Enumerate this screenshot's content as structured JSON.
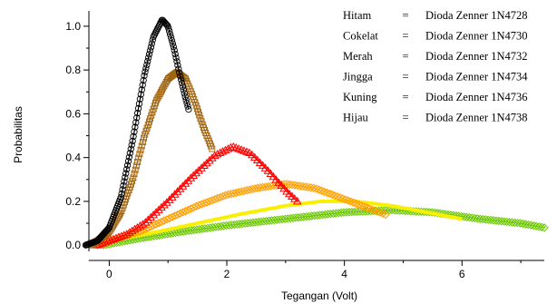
{
  "chart_data": {
    "type": "scatter",
    "title": "",
    "xlabel": "Tegangan (Volt)",
    "ylabel": "Probabilitas",
    "xlim": [
      -0.5,
      7.4
    ],
    "ylim": [
      -0.02,
      1.07
    ],
    "x_ticks": [
      0,
      2,
      4,
      6
    ],
    "x_tick_labels": [
      "0",
      "2",
      "4",
      "6"
    ],
    "y_ticks": [
      0.0,
      0.2,
      0.4,
      0.6,
      0.8,
      1.0
    ],
    "y_tick_labels": [
      "0.0",
      "0.2",
      "0.4",
      "0.6",
      "0.8",
      "1.0"
    ],
    "grid": false,
    "legend_position": "top-right",
    "legend": [
      {
        "color_name": "Hitam",
        "separator": "=",
        "label": "Dioda Zenner 1N4728"
      },
      {
        "color_name": "Cokelat",
        "separator": "=",
        "label": "Dioda Zenner 1N4730"
      },
      {
        "color_name": "Merah",
        "separator": "=",
        "label": "Dioda Zenner 1N4732"
      },
      {
        "color_name": "Jingga",
        "separator": "=",
        "label": "Dioda Zenner 1N4734"
      },
      {
        "color_name": "Kuning",
        "separator": "=",
        "label": "Dioda Zenner 1N4736"
      },
      {
        "color_name": "Hijau",
        "separator": "=",
        "label": "Dioda Zenner 1N4738"
      }
    ],
    "series": [
      {
        "color": "#000000",
        "marker": "circle",
        "curve_x": [
          -0.4,
          -0.2,
          0.0,
          0.2,
          0.4,
          0.6,
          0.75,
          0.9,
          1.0,
          1.1,
          1.2,
          1.3,
          1.35
        ],
        "curve_y": [
          0.0,
          0.02,
          0.08,
          0.22,
          0.48,
          0.78,
          0.95,
          1.03,
          1.0,
          0.9,
          0.78,
          0.67,
          0.62
        ]
      },
      {
        "color": "#a0620a",
        "marker": "square",
        "curve_x": [
          -0.3,
          0.0,
          0.2,
          0.4,
          0.6,
          0.8,
          1.0,
          1.15,
          1.3,
          1.45,
          1.6,
          1.75
        ],
        "curve_y": [
          0.0,
          0.06,
          0.15,
          0.3,
          0.5,
          0.66,
          0.76,
          0.79,
          0.76,
          0.66,
          0.54,
          0.44
        ]
      },
      {
        "color": "#ff0000",
        "marker": "triangle",
        "curve_x": [
          -0.2,
          0.0,
          0.3,
          0.6,
          1.0,
          1.4,
          1.8,
          2.1,
          2.4,
          2.7,
          3.0,
          3.2
        ],
        "curve_y": [
          0.0,
          0.02,
          0.05,
          0.1,
          0.2,
          0.31,
          0.41,
          0.45,
          0.42,
          0.34,
          0.25,
          0.2
        ]
      },
      {
        "color": "#ffa000",
        "marker": "diamond",
        "curve_x": [
          -0.2,
          0.0,
          0.5,
          1.0,
          1.5,
          2.0,
          2.5,
          3.0,
          3.5,
          4.0,
          4.5,
          4.7
        ],
        "curve_y": [
          0.0,
          0.02,
          0.06,
          0.12,
          0.18,
          0.23,
          0.26,
          0.28,
          0.26,
          0.21,
          0.16,
          0.14
        ]
      },
      {
        "color": "#f8f000",
        "marker": "line",
        "curve_x": [
          -0.1,
          0.2,
          0.8,
          1.5,
          2.2,
          3.0,
          3.6,
          4.2,
          4.8,
          5.4,
          6.0
        ],
        "curve_y": [
          0.0,
          0.03,
          0.06,
          0.1,
          0.14,
          0.18,
          0.2,
          0.2,
          0.18,
          0.15,
          0.12
        ]
      },
      {
        "color": "#6cc800",
        "marker": "diamond",
        "curve_x": [
          -0.1,
          0.5,
          1.2,
          2.0,
          3.0,
          4.0,
          4.8,
          5.5,
          6.3,
          7.0,
          7.4
        ],
        "curve_y": [
          0.0,
          0.03,
          0.06,
          0.09,
          0.12,
          0.15,
          0.16,
          0.15,
          0.12,
          0.1,
          0.08
        ]
      }
    ]
  }
}
